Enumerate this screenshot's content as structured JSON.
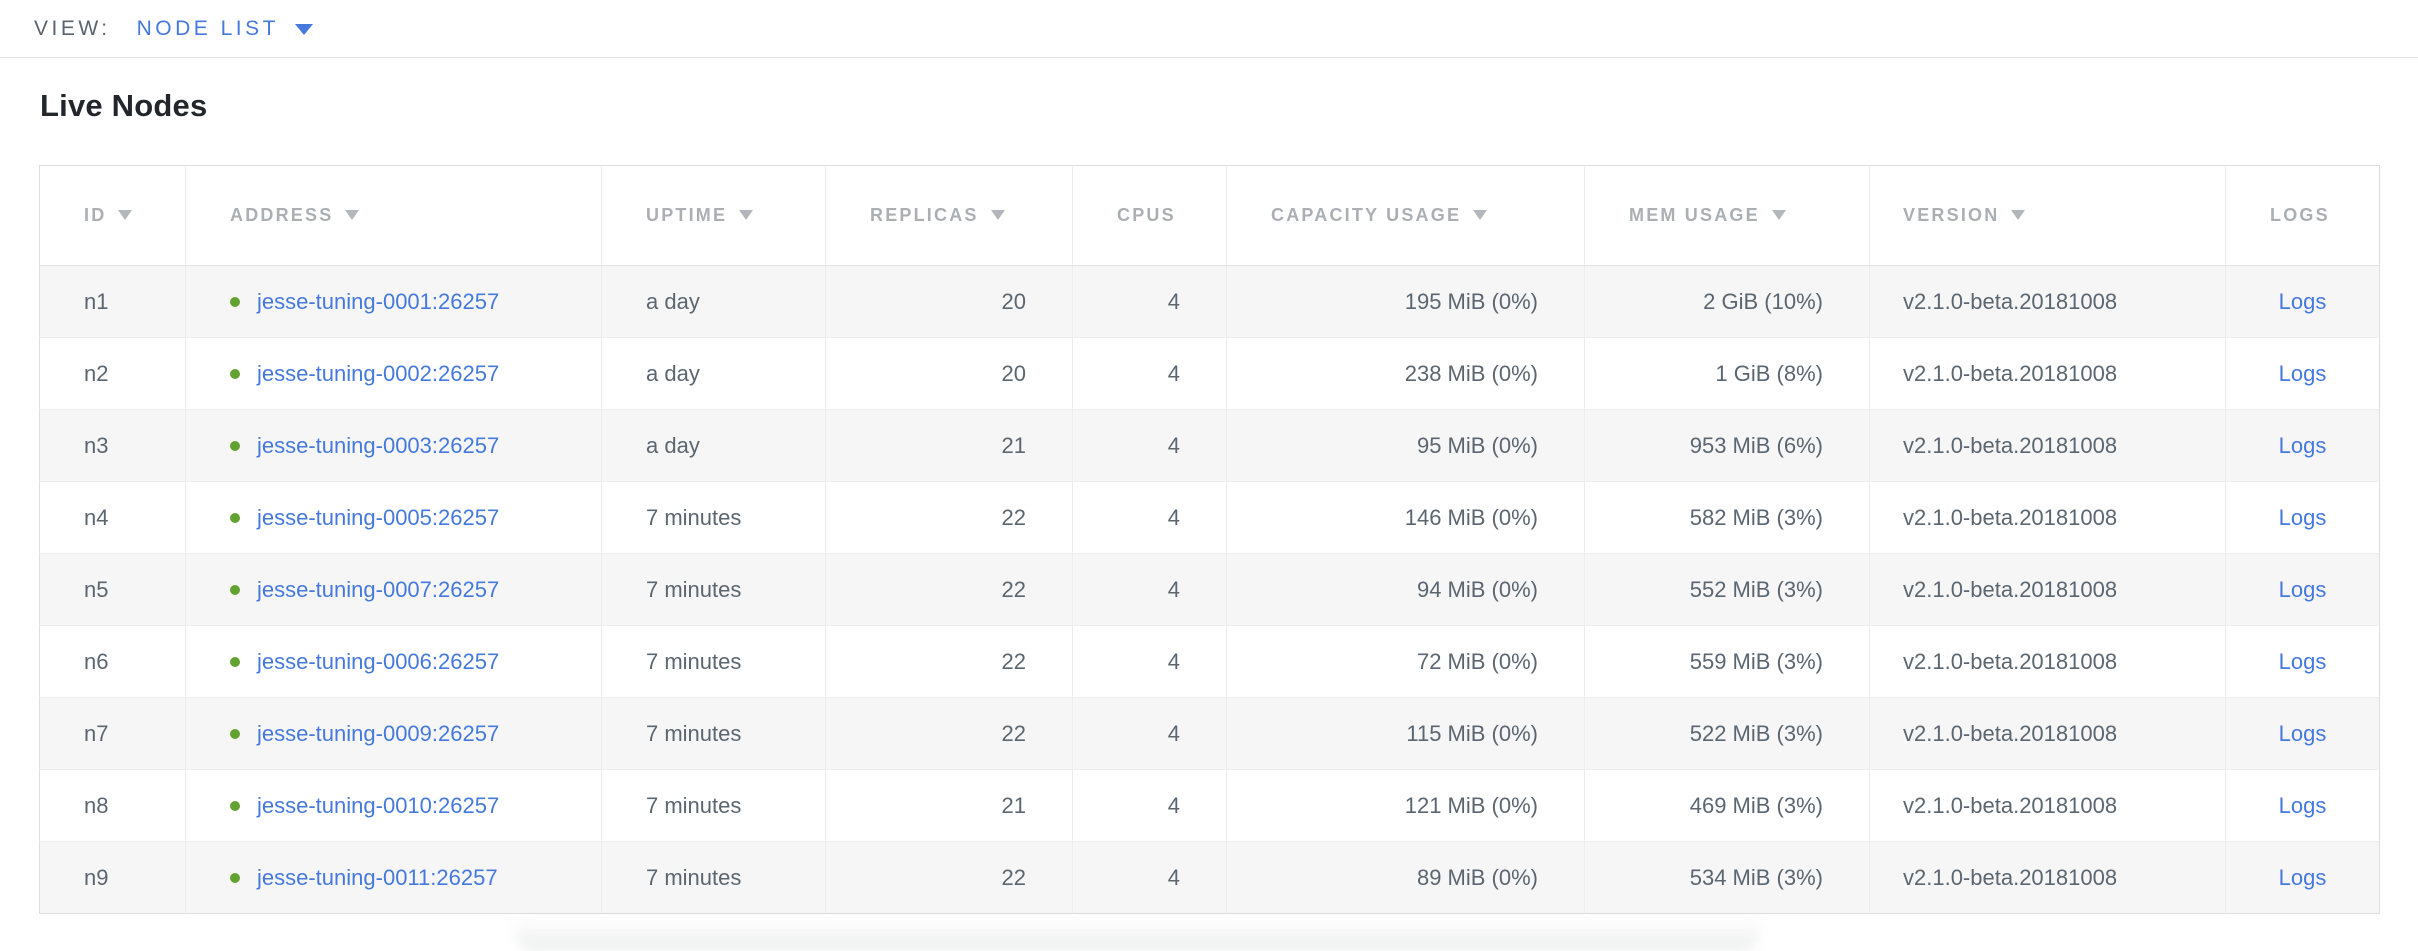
{
  "view_bar": {
    "label": "VIEW:",
    "selected": "NODE LIST"
  },
  "page": {
    "title": "Live Nodes"
  },
  "table": {
    "columns": [
      {
        "key": "id",
        "label": "ID",
        "sortable": true,
        "align": "left"
      },
      {
        "key": "address",
        "label": "ADDRESS",
        "sortable": true,
        "align": "left"
      },
      {
        "key": "uptime",
        "label": "UPTIME",
        "sortable": true,
        "align": "left"
      },
      {
        "key": "replicas",
        "label": "REPLICAS",
        "sortable": true,
        "align": "right"
      },
      {
        "key": "cpus",
        "label": "CPUS",
        "sortable": false,
        "align": "right"
      },
      {
        "key": "capacity",
        "label": "CAPACITY USAGE",
        "sortable": true,
        "align": "right"
      },
      {
        "key": "mem",
        "label": "MEM USAGE",
        "sortable": true,
        "align": "right"
      },
      {
        "key": "version",
        "label": "VERSION",
        "sortable": true,
        "align": "left"
      },
      {
        "key": "logs",
        "label": "LOGS",
        "sortable": false,
        "align": "center"
      }
    ],
    "rows": [
      {
        "id": "n1",
        "address": "jesse-tuning-0001:26257",
        "uptime": "a day",
        "replicas": "20",
        "cpus": "4",
        "capacity": "195 MiB (0%)",
        "mem": "2 GiB (10%)",
        "version": "v2.1.0-beta.20181008",
        "logs": "Logs"
      },
      {
        "id": "n2",
        "address": "jesse-tuning-0002:26257",
        "uptime": "a day",
        "replicas": "20",
        "cpus": "4",
        "capacity": "238 MiB (0%)",
        "mem": "1 GiB (8%)",
        "version": "v2.1.0-beta.20181008",
        "logs": "Logs"
      },
      {
        "id": "n3",
        "address": "jesse-tuning-0003:26257",
        "uptime": "a day",
        "replicas": "21",
        "cpus": "4",
        "capacity": "95 MiB (0%)",
        "mem": "953 MiB (6%)",
        "version": "v2.1.0-beta.20181008",
        "logs": "Logs"
      },
      {
        "id": "n4",
        "address": "jesse-tuning-0005:26257",
        "uptime": "7 minutes",
        "replicas": "22",
        "cpus": "4",
        "capacity": "146 MiB (0%)",
        "mem": "582 MiB (3%)",
        "version": "v2.1.0-beta.20181008",
        "logs": "Logs"
      },
      {
        "id": "n5",
        "address": "jesse-tuning-0007:26257",
        "uptime": "7 minutes",
        "replicas": "22",
        "cpus": "4",
        "capacity": "94 MiB (0%)",
        "mem": "552 MiB (3%)",
        "version": "v2.1.0-beta.20181008",
        "logs": "Logs"
      },
      {
        "id": "n6",
        "address": "jesse-tuning-0006:26257",
        "uptime": "7 minutes",
        "replicas": "22",
        "cpus": "4",
        "capacity": "72 MiB (0%)",
        "mem": "559 MiB (3%)",
        "version": "v2.1.0-beta.20181008",
        "logs": "Logs"
      },
      {
        "id": "n7",
        "address": "jesse-tuning-0009:26257",
        "uptime": "7 minutes",
        "replicas": "22",
        "cpus": "4",
        "capacity": "115 MiB (0%)",
        "mem": "522 MiB (3%)",
        "version": "v2.1.0-beta.20181008",
        "logs": "Logs"
      },
      {
        "id": "n8",
        "address": "jesse-tuning-0010:26257",
        "uptime": "7 minutes",
        "replicas": "21",
        "cpus": "4",
        "capacity": "121 MiB (0%)",
        "mem": "469 MiB (3%)",
        "version": "v2.1.0-beta.20181008",
        "logs": "Logs"
      },
      {
        "id": "n9",
        "address": "jesse-tuning-0011:26257",
        "uptime": "7 minutes",
        "replicas": "22",
        "cpus": "4",
        "capacity": "89 MiB (0%)",
        "mem": "534 MiB (3%)",
        "version": "v2.1.0-beta.20181008",
        "logs": "Logs"
      }
    ]
  },
  "icons": {
    "dropdown_caret": "caret-down-icon",
    "sort_descending": "sort-desc-icon",
    "node_live_status": "green-dot-icon"
  },
  "colors": {
    "link_blue": "#4679de",
    "header_gray": "#abafb4",
    "cell_slate": "#5b6671",
    "live_green": "#61a231",
    "row_stripe": "#f6f6f7",
    "table_border": "#dcdddf",
    "title_dark": "#22262b"
  }
}
